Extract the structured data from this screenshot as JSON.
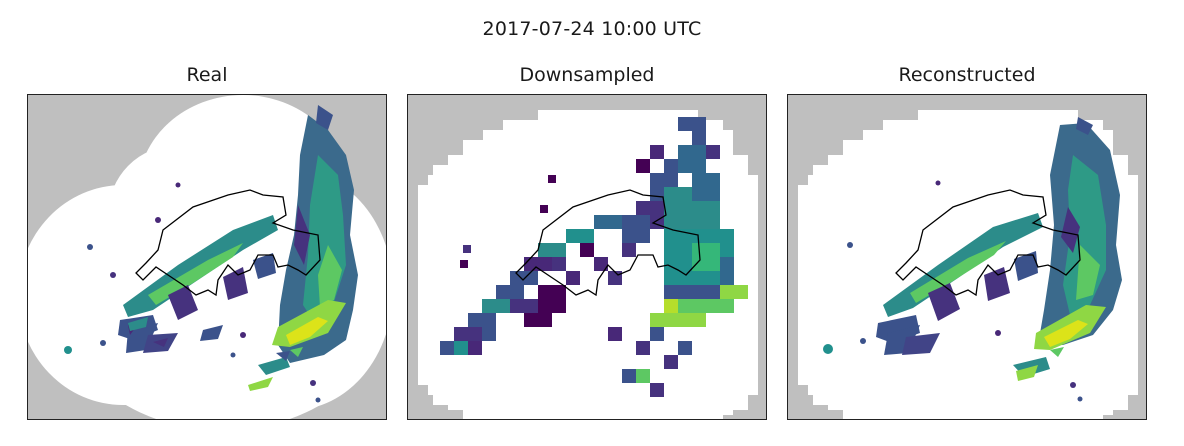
{
  "figure": {
    "title": "2017-07-24 10:00 UTC"
  },
  "panels": [
    {
      "title": "Real"
    },
    {
      "title": "Downsampled"
    },
    {
      "title": "Reconstructed"
    }
  ],
  "colors": {
    "no_data": "#bfbfbf",
    "no_rain": "#ffffff",
    "border": "#000000",
    "colormap": [
      "#440154",
      "#3b528b",
      "#21908d",
      "#5dc863",
      "#fde725"
    ]
  }
}
